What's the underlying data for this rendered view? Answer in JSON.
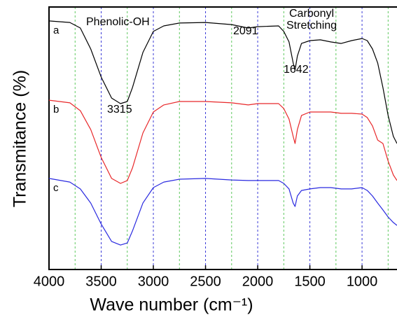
{
  "chart_data": {
    "type": "line",
    "xlabel": "Wave number (cm⁻¹)",
    "ylabel": "Transmitance (%)",
    "x": [
      4000,
      3800,
      3700,
      3600,
      3500,
      3400,
      3315,
      3250,
      3200,
      3100,
      3000,
      2900,
      2750,
      2500,
      2250,
      2091,
      2000,
      1800,
      1750,
      1700,
      1660,
      1642,
      1620,
      1580,
      1500,
      1400,
      1300,
      1200,
      1100,
      1000,
      950,
      900,
      850,
      800,
      750,
      700,
      665
    ],
    "series": [
      {
        "name": "a",
        "color": "#000000",
        "values": [
          94.7,
          94.1,
          92,
          84,
          73.3,
          65.3,
          63.2,
          64,
          69.3,
          82.7,
          90.7,
          92.8,
          93.9,
          94.1,
          93.3,
          92,
          92.5,
          92.8,
          90.7,
          86.7,
          78.7,
          76,
          81.3,
          86.1,
          87.2,
          87.5,
          86.7,
          86.1,
          87.2,
          88,
          87.2,
          84,
          78.7,
          69.3,
          58.7,
          50.7,
          48
        ]
      },
      {
        "name": "b",
        "color": "#e8282a",
        "values": [
          64.5,
          63.5,
          60.5,
          53.3,
          42.7,
          34.7,
          32.8,
          33.9,
          38.7,
          52,
          60,
          62.7,
          64,
          64,
          63.5,
          62.7,
          63.2,
          63.2,
          61.3,
          57.3,
          50.7,
          48,
          53.3,
          58.7,
          60,
          60,
          60,
          59.5,
          59.5,
          59.2,
          57.9,
          54.7,
          49.3,
          48,
          41.3,
          36,
          33.9
        ]
      },
      {
        "name": "c",
        "color": "#2a2ae0",
        "values": [
          34.7,
          33.3,
          30.7,
          25.3,
          17.3,
          10.7,
          9.3,
          10.1,
          14.7,
          25.3,
          31.2,
          33.3,
          34.4,
          34.7,
          34.1,
          33.9,
          33.9,
          33.9,
          32.8,
          30.7,
          25.3,
          24,
          28,
          30.1,
          30.7,
          31.2,
          31.2,
          30.7,
          30.7,
          31.2,
          30.1,
          28,
          25.3,
          22.7,
          20,
          17.9,
          16.8
        ]
      }
    ],
    "annotations": [
      "Phenolic-OH",
      "3315",
      "2091",
      "Carbonyl",
      "Stretching",
      "1642"
    ],
    "xlim": [
      4000,
      665
    ],
    "ylim": [
      0,
      100
    ],
    "xticks": [
      4000,
      3500,
      3000,
      2500,
      2000,
      1500,
      1000
    ],
    "grid": true,
    "grid_color": "#3a3ad8",
    "minor_xticks": [
      3750,
      3250,
      2750,
      2250,
      1750,
      1250,
      750
    ],
    "minor_grid_color": "#5cc85c"
  }
}
